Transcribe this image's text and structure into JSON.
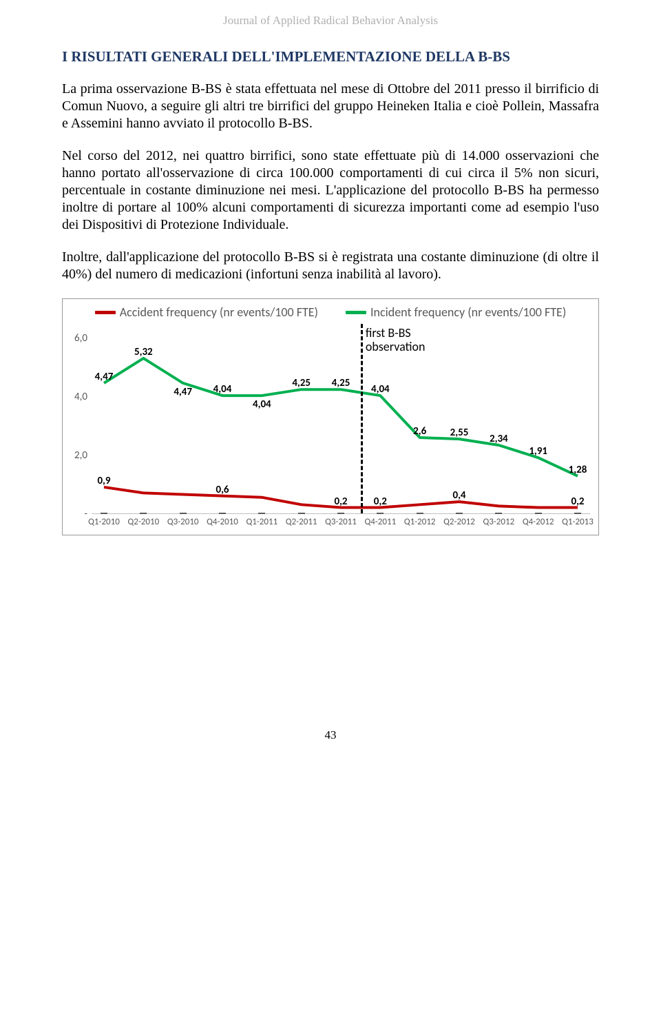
{
  "running_head": "Journal of Applied Radical Behavior Analysis",
  "heading": "I RISULTATI GENERALI DELL'IMPLEMENTAZIONE DELLA B-BS",
  "para1": "La prima osservazione B-BS è stata effettuata nel mese di Ottobre del 2011 presso il birrificio di Comun Nuovo, a seguire gli altri tre birrifici del gruppo Heineken Italia e cioè Pollein, Massafra e Assemini hanno avviato il protocollo B-BS.",
  "para2": "Nel corso del 2012, nei quattro birrifici, sono state effettuate più di 14.000 osservazioni che hanno portato all'osservazione di circa 100.000 comportamenti di cui circa il 5% non sicuri, percentuale in costante diminuzione nei mesi. L'applicazione del protocollo B-BS ha permesso inoltre di portare al 100% alcuni comportamenti di sicurezza importanti come ad esempio l'uso dei Dispositivi di Protezione Individuale.",
  "para3": "Inoltre, dall'applicazione del protocollo B-BS si è registrata una costante diminuzione (di oltre il 40%) del numero di medicazioni (infortuni senza inabilità al lavoro).",
  "page_number": "43",
  "chart": {
    "type": "line",
    "legend": {
      "series1": {
        "label": "Accident frequency (nr events/100 FTE)",
        "color": "#c00000"
      },
      "series2": {
        "label": "Incident frequency (nr events/100 FTE)",
        "color": "#00b050"
      }
    },
    "ylim": [
      0,
      6.5
    ],
    "yticks": [
      0,
      2.0,
      4.0,
      6.0
    ],
    "ytick_labels": [
      "-",
      "2,0",
      "4,0",
      "6,0"
    ],
    "categories": [
      "Q1-2010",
      "Q2-2010",
      "Q3-2010",
      "Q4-2010",
      "Q1-2011",
      "Q2-2011",
      "Q3-2011",
      "Q4-2011",
      "Q1-2012",
      "Q2-2012",
      "Q3-2012",
      "Q4-2012",
      "Q1-2013"
    ],
    "accident": [
      0.9,
      0.7,
      0.65,
      0.6,
      0.55,
      0.3,
      0.2,
      0.2,
      0.3,
      0.4,
      0.25,
      0.2,
      0.2
    ],
    "incident": [
      4.47,
      5.32,
      4.47,
      4.04,
      4.04,
      4.25,
      4.25,
      4.04,
      2.6,
      2.55,
      2.34,
      1.91,
      1.28
    ],
    "accident_labels": {
      "0": "0,9",
      "3": "0,6",
      "6": "0,2",
      "7": "0,2",
      "9": "0,4",
      "12": "0,2"
    },
    "incident_labels": {
      "0": "4,47",
      "1": "5,32",
      "2": "4,47",
      "3": "4,04",
      "4": "4,04",
      "5": "4,25",
      "6": "4,25",
      "7": "4,04",
      "8": "2,6",
      "9": "2,55",
      "10": "2,34",
      "11": "1,91",
      "12": "1,28"
    },
    "incident_label_offset": {
      "1": "above",
      "2": "below",
      "4": "below"
    },
    "line_width": 4,
    "vline_index": 6.5,
    "annotation": {
      "line1": "first B-BS",
      "line2": "observation"
    },
    "colors": {
      "axis": "#595959",
      "grid": "#bfbfbf"
    }
  }
}
